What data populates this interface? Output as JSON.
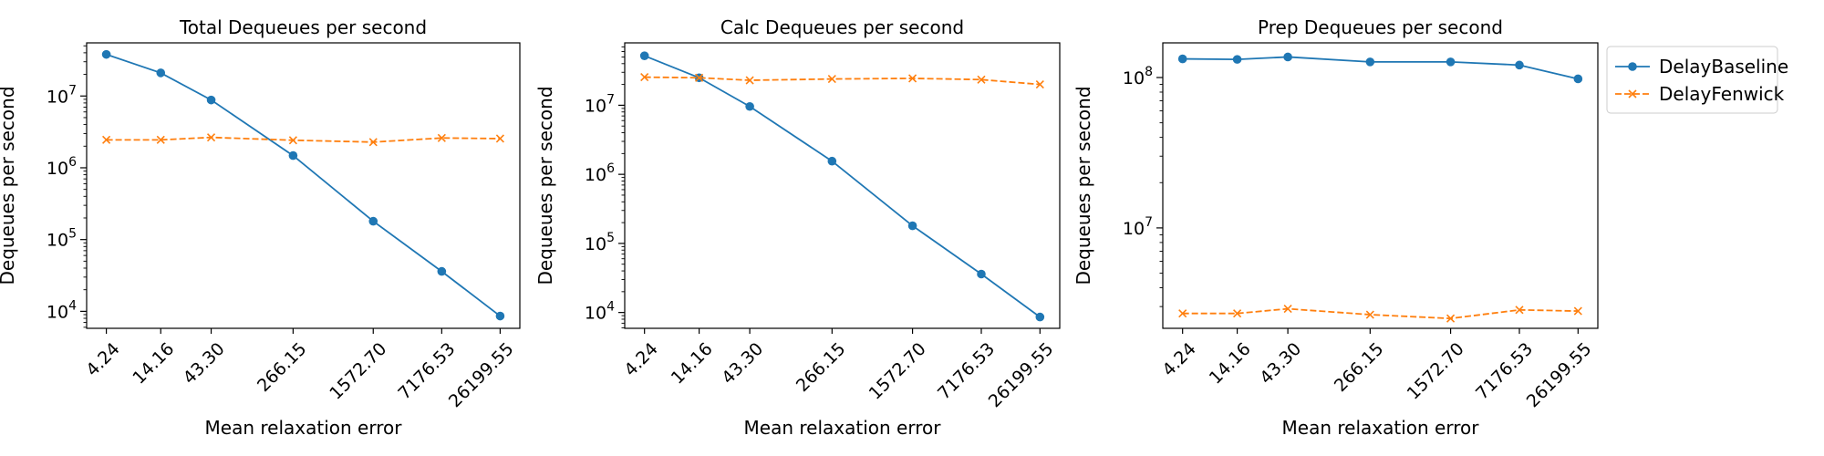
{
  "colors": {
    "DelayBaseline": "#1f77b4",
    "DelayFenwick": "#ff7f0e"
  },
  "legend": {
    "placement": "outside-upper-right",
    "items": [
      {
        "name": "DelayBaseline",
        "marker": "circle",
        "line": "solid"
      },
      {
        "name": "DelayFenwick",
        "marker": "x",
        "line": "dashed"
      }
    ]
  },
  "chart_data": [
    {
      "type": "line",
      "title": "Total Dequeues per second",
      "xlabel": "Mean relaxation error",
      "ylabel": "Dequeues per second",
      "xscale": "log",
      "yscale": "log",
      "grid": false,
      "x": [
        4.24,
        14.16,
        43.3,
        266.15,
        1572.7,
        7176.53,
        26199.55
      ],
      "xtick_labels": [
        "4.24",
        "14.16",
        "43.30",
        "266.15",
        "1572.70",
        "7176.53",
        "26199.55"
      ],
      "yticks": [
        10000,
        100000,
        1000000,
        10000000
      ],
      "ylim": [
        5800,
        55000000
      ],
      "series": [
        {
          "name": "DelayBaseline",
          "values": [
            38000000,
            21000000,
            8800000,
            1480000,
            180000,
            36000,
            8600
          ]
        },
        {
          "name": "DelayFenwick",
          "values": [
            2450000,
            2450000,
            2650000,
            2420000,
            2280000,
            2600000,
            2550000
          ]
        }
      ]
    },
    {
      "type": "line",
      "title": "Calc Dequeues per second",
      "xlabel": "Mean relaxation error",
      "ylabel": "Dequeues per second",
      "xscale": "log",
      "yscale": "log",
      "grid": false,
      "x": [
        4.24,
        14.16,
        43.3,
        266.15,
        1572.7,
        7176.53,
        26199.55
      ],
      "xtick_labels": [
        "4.24",
        "14.16",
        "43.30",
        "266.15",
        "1572.70",
        "7176.53",
        "26199.55"
      ],
      "yticks": [
        10000,
        100000,
        1000000,
        10000000
      ],
      "ylim": [
        5900,
        80000000
      ],
      "series": [
        {
          "name": "DelayBaseline",
          "values": [
            52000000,
            25000000,
            9600000,
            1550000,
            180000,
            36000,
            8600
          ]
        },
        {
          "name": "DelayFenwick",
          "values": [
            25500000,
            25000000,
            23000000,
            24000000,
            24500000,
            23500000,
            20000000
          ]
        }
      ]
    },
    {
      "type": "line",
      "title": "Prep Dequeues per second",
      "xlabel": "Mean relaxation error",
      "ylabel": "Dequeues per second",
      "xscale": "log",
      "yscale": "log",
      "grid": false,
      "x": [
        4.24,
        14.16,
        43.3,
        266.15,
        1572.7,
        7176.53,
        26199.55
      ],
      "xtick_labels": [
        "4.24",
        "14.16",
        "43.30",
        "266.15",
        "1572.70",
        "7176.53",
        "26199.55"
      ],
      "yticks": [
        10000000,
        100000000
      ],
      "ylim": [
        2150000,
        170000000
      ],
      "series": [
        {
          "name": "DelayBaseline",
          "values": [
            133000000,
            132000000,
            137000000,
            127000000,
            127000000,
            121000000,
            98000000
          ]
        },
        {
          "name": "DelayFenwick",
          "values": [
            2700000,
            2700000,
            2900000,
            2650000,
            2500000,
            2850000,
            2800000
          ]
        }
      ]
    }
  ]
}
